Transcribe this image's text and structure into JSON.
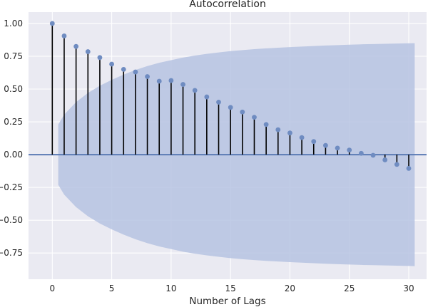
{
  "chart_data": {
    "type": "stem",
    "title": "Autocorrelation",
    "xlabel": "Number of Lags",
    "ylabel": "",
    "xlim": [
      -2,
      31.5
    ],
    "ylim": [
      -0.95,
      1.0866
    ],
    "xticks": [
      0,
      5,
      10,
      15,
      20,
      25,
      30
    ],
    "yticks": [
      -0.75,
      -0.5,
      -0.25,
      0.0,
      0.25,
      0.5,
      0.75,
      1.0
    ],
    "ytick_labels": [
      "−0.75",
      "−0.50",
      "−0.25",
      "0.00",
      "0.25",
      "0.50",
      "0.75",
      "1.00"
    ],
    "xtick_labels": [
      "0",
      "5",
      "10",
      "15",
      "20",
      "25",
      "30"
    ],
    "grid": true,
    "lags": [
      0,
      1,
      2,
      3,
      4,
      5,
      6,
      7,
      8,
      9,
      10,
      11,
      12,
      13,
      14,
      15,
      16,
      17,
      18,
      19,
      20,
      21,
      22,
      23,
      24,
      25,
      26,
      27,
      28,
      29,
      30
    ],
    "values": [
      1.0,
      0.905,
      0.825,
      0.785,
      0.74,
      0.69,
      0.65,
      0.63,
      0.595,
      0.56,
      0.565,
      0.535,
      0.49,
      0.44,
      0.4,
      0.36,
      0.325,
      0.285,
      0.23,
      0.19,
      0.165,
      0.13,
      0.1,
      0.07,
      0.05,
      0.035,
      0.01,
      -0.005,
      -0.04,
      -0.075,
      -0.105
    ],
    "confidence_band": {
      "x": [
        0.5,
        1,
        2,
        3,
        4,
        5,
        6,
        7,
        8,
        9,
        10,
        11,
        12,
        13,
        14,
        15,
        16,
        17,
        18,
        19,
        20,
        21,
        22,
        23,
        24,
        25,
        26,
        27,
        28,
        29,
        30,
        30.5
      ],
      "upper": [
        0.23,
        0.305,
        0.4,
        0.47,
        0.525,
        0.57,
        0.61,
        0.645,
        0.675,
        0.7,
        0.72,
        0.74,
        0.755,
        0.768,
        0.779,
        0.789,
        0.797,
        0.804,
        0.81,
        0.815,
        0.82,
        0.824,
        0.828,
        0.832,
        0.835,
        0.838,
        0.841,
        0.843,
        0.845,
        0.847,
        0.849,
        0.85
      ]
    },
    "colors": {
      "background": "#eaeaf2",
      "grid": "#ffffff",
      "stem": "#000000",
      "marker": "#6f8cc1",
      "band": "#b6c3e2",
      "zero_line": "#5b7bb5"
    }
  }
}
